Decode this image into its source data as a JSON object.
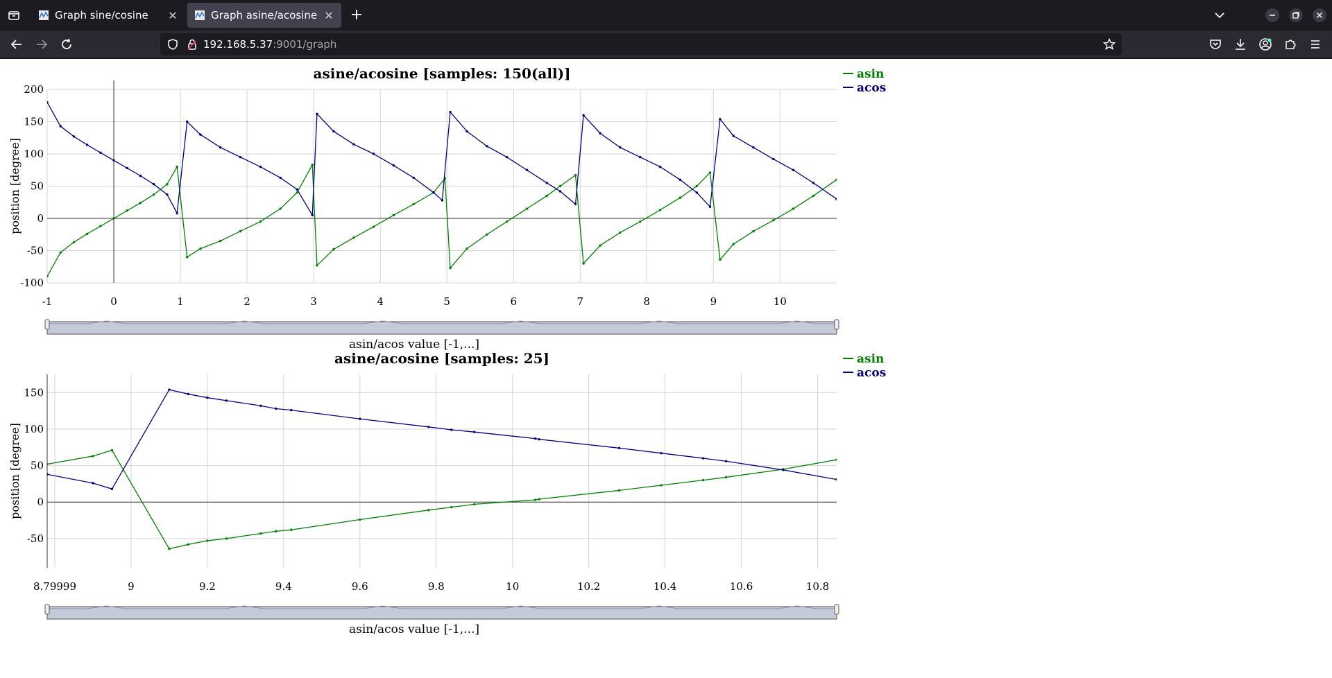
{
  "browser": {
    "tabs": [
      {
        "label": "Graph sine/cosine",
        "active": false
      },
      {
        "label": "Graph asine/acosine",
        "active": true
      }
    ],
    "url_host": "192.168.5.37",
    "url_rest": ":9001/graph",
    "icons": [
      "tab-list-icon",
      "close-icon",
      "new-tab-icon",
      "list-all-tabs-icon",
      "minimize-icon",
      "restore-icon",
      "close-window-icon",
      "back-icon",
      "forward-icon",
      "reload-icon",
      "shield-icon",
      "lock-icon",
      "bookmark-star-icon",
      "pocket-icon",
      "downloads-icon",
      "account-icon",
      "extensions-icon",
      "menu-icon"
    ]
  },
  "colors": {
    "asin": "#008000",
    "acos": "#000080"
  },
  "chart_data": [
    {
      "type": "line",
      "title": "asine/acosine [samples: 150(all)]",
      "xlabel": "asin/acos value [-1,...]",
      "ylabel": "position [degree]",
      "xlim": [
        -1,
        10.85
      ],
      "ylim": [
        -100,
        200
      ],
      "x_ticks": [
        "-1",
        "0",
        "1",
        "2",
        "3",
        "4",
        "5",
        "6",
        "7",
        "8",
        "9",
        "10"
      ],
      "y_ticks": [
        "200",
        "150",
        "100",
        "50",
        "0",
        "-50",
        "-100"
      ],
      "legend": "top-right",
      "grid": true,
      "series": [
        {
          "name": "asin",
          "color": "#008000",
          "x": [
            -1,
            -0.8,
            -0.6,
            -0.4,
            -0.2,
            0,
            0.2,
            0.4,
            0.6,
            0.8,
            0.95,
            1.1,
            1.3,
            1.6,
            1.9,
            2.2,
            2.5,
            2.75,
            2.98,
            3.05,
            3.3,
            3.6,
            3.9,
            4.2,
            4.5,
            4.8,
            4.97,
            5.05,
            5.3,
            5.6,
            5.9,
            6.2,
            6.5,
            6.7,
            6.93,
            7.05,
            7.3,
            7.6,
            7.9,
            8.2,
            8.5,
            8.75,
            8.95,
            9.1,
            9.3,
            9.6,
            9.9,
            10.2,
            10.5,
            10.85
          ],
          "y": [
            -90,
            -53,
            -37,
            -24,
            -12,
            0,
            12,
            24,
            37,
            53,
            80,
            -60,
            -47,
            -35,
            -20,
            -5,
            15,
            40,
            83,
            -73,
            -48,
            -30,
            -13,
            5,
            22,
            40,
            62,
            -77,
            -47,
            -25,
            -5,
            15,
            35,
            50,
            67,
            -70,
            -42,
            -22,
            -5,
            13,
            32,
            50,
            71,
            -64,
            -40,
            -20,
            -3,
            15,
            35,
            60
          ]
        },
        {
          "name": "acos",
          "color": "#000080",
          "x": [
            -1,
            -0.8,
            -0.6,
            -0.4,
            -0.2,
            0,
            0.2,
            0.4,
            0.6,
            0.8,
            0.95,
            1.1,
            1.3,
            1.6,
            1.9,
            2.2,
            2.5,
            2.75,
            2.98,
            3.05,
            3.3,
            3.6,
            3.9,
            4.2,
            4.5,
            4.8,
            4.93,
            5.05,
            5.3,
            5.6,
            5.9,
            6.2,
            6.5,
            6.7,
            6.93,
            7.05,
            7.3,
            7.6,
            7.9,
            8.2,
            8.5,
            8.75,
            8.95,
            9.1,
            9.3,
            9.6,
            9.9,
            10.2,
            10.5,
            10.85
          ],
          "y": [
            180,
            143,
            127,
            114,
            102,
            90,
            78,
            66,
            53,
            37,
            8,
            150,
            130,
            110,
            95,
            80,
            63,
            45,
            5,
            162,
            135,
            115,
            100,
            82,
            63,
            40,
            28,
            165,
            135,
            112,
            95,
            75,
            55,
            42,
            22,
            160,
            132,
            110,
            95,
            80,
            60,
            40,
            18,
            154,
            128,
            110,
            92,
            75,
            55,
            30
          ]
        }
      ]
    },
    {
      "type": "line",
      "title": "asine/acosine [samples: 25]",
      "xlabel": "asin/acos value [-1,...]",
      "ylabel": "position [degree]",
      "xlim": [
        8.78,
        10.85
      ],
      "ylim": [
        -90,
        175
      ],
      "x_ticks": [
        "8.79999",
        "9",
        "9.2",
        "9.4",
        "9.6",
        "9.8",
        "10",
        "10.2",
        "10.4",
        "10.6",
        "10.8"
      ],
      "y_ticks": [
        "150",
        "100",
        "50",
        "0",
        "-50"
      ],
      "legend": "top-right",
      "grid": true,
      "series": [
        {
          "name": "asin",
          "color": "#008000",
          "x": [
            8.78,
            8.9,
            8.95,
            9.1,
            9.15,
            9.2,
            9.25,
            9.34,
            9.38,
            9.42,
            9.6,
            9.78,
            9.84,
            9.9,
            10.06,
            10.07,
            10.28,
            10.39,
            10.5,
            10.56,
            10.71,
            10.85
          ],
          "y": [
            52,
            63,
            71,
            -64,
            -58,
            -53,
            -50,
            -43,
            -40,
            -38,
            -24,
            -11,
            -7,
            -3,
            3,
            4,
            16,
            23,
            30,
            34,
            45,
            58
          ]
        },
        {
          "name": "acos",
          "color": "#000080",
          "x": [
            8.78,
            8.9,
            8.95,
            9.1,
            9.15,
            9.2,
            9.25,
            9.34,
            9.38,
            9.42,
            9.6,
            9.78,
            9.84,
            9.9,
            10.06,
            10.07,
            10.28,
            10.39,
            10.5,
            10.56,
            10.71,
            10.85
          ],
          "y": [
            38,
            26,
            18,
            154,
            148,
            143,
            139,
            132,
            128,
            126,
            114,
            103,
            99,
            96,
            87,
            86,
            74,
            67,
            60,
            56,
            44,
            31
          ]
        }
      ]
    }
  ]
}
